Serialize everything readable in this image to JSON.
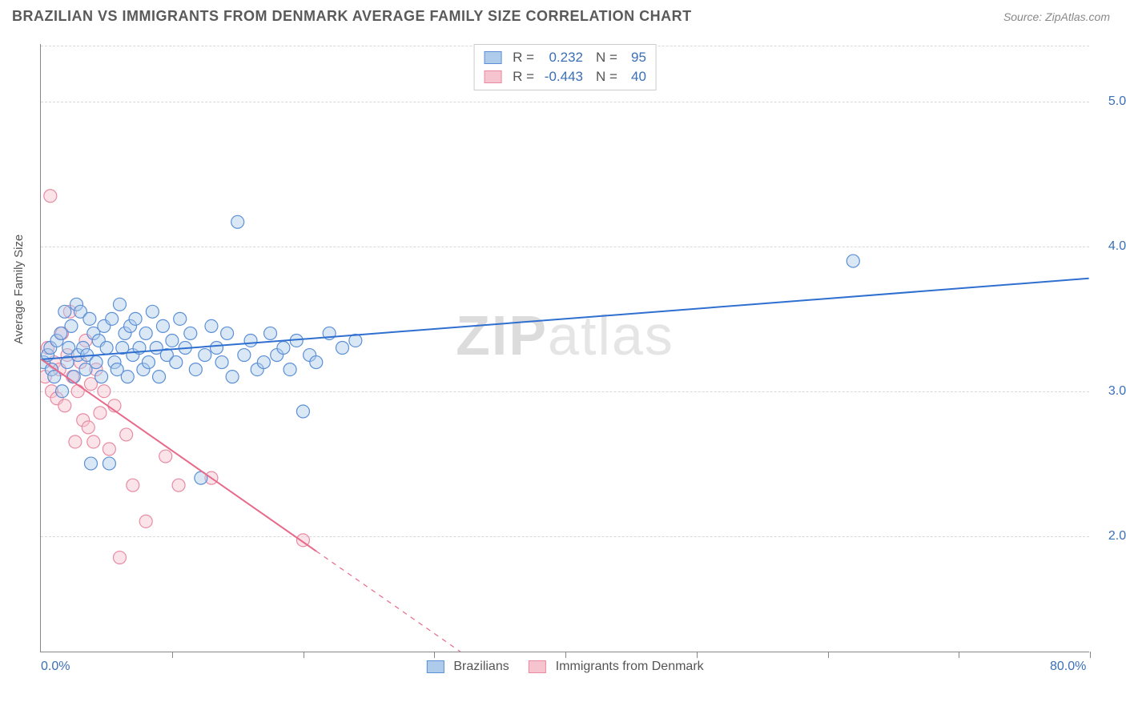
{
  "title": "BRAZILIAN VS IMMIGRANTS FROM DENMARK AVERAGE FAMILY SIZE CORRELATION CHART",
  "source": "Source: ZipAtlas.com",
  "ylabel": "Average Family Size",
  "watermark_part1": "ZIP",
  "watermark_part2": "atlas",
  "chart": {
    "type": "scatter",
    "xlim": [
      0,
      80
    ],
    "ylim": [
      1.2,
      5.4
    ],
    "xtick_labels": {
      "0": "0.0%",
      "80": "80.0%"
    },
    "xtick_positions": [
      0,
      10,
      20,
      30,
      40,
      50,
      60,
      70,
      80
    ],
    "ytick_positions": [
      2.0,
      3.0,
      4.0,
      5.0
    ],
    "ytick_labels": [
      "2.00",
      "3.00",
      "4.00",
      "5.00"
    ],
    "grid_color": "#d8d8d8",
    "background_color": "#ffffff",
    "axis_color": "#888888",
    "marker_radius": 8,
    "marker_opacity": 0.45,
    "line_width": 2,
    "series": [
      {
        "name": "Brazilians",
        "color_fill": "#aecbeb",
        "color_stroke": "#5b8fd6",
        "line_color": "#2f6fd0",
        "R": "0.232",
        "N": "95",
        "trend": {
          "x1": 0,
          "y1": 3.22,
          "x2": 80,
          "y2": 3.78,
          "solid_until_x": 80
        },
        "points": [
          [
            0.2,
            3.2
          ],
          [
            0.5,
            3.25
          ],
          [
            0.7,
            3.3
          ],
          [
            0.8,
            3.15
          ],
          [
            1.0,
            3.1
          ],
          [
            1.2,
            3.35
          ],
          [
            1.5,
            3.4
          ],
          [
            1.6,
            3.0
          ],
          [
            1.8,
            3.55
          ],
          [
            2.0,
            3.2
          ],
          [
            2.1,
            3.3
          ],
          [
            2.3,
            3.45
          ],
          [
            2.5,
            3.1
          ],
          [
            2.7,
            3.6
          ],
          [
            2.8,
            3.25
          ],
          [
            3.0,
            3.55
          ],
          [
            3.2,
            3.3
          ],
          [
            3.4,
            3.15
          ],
          [
            3.5,
            3.25
          ],
          [
            3.7,
            3.5
          ],
          [
            3.8,
            2.5
          ],
          [
            4.0,
            3.4
          ],
          [
            4.2,
            3.2
          ],
          [
            4.4,
            3.35
          ],
          [
            4.6,
            3.1
          ],
          [
            4.8,
            3.45
          ],
          [
            5.0,
            3.3
          ],
          [
            5.2,
            2.5
          ],
          [
            5.4,
            3.5
          ],
          [
            5.6,
            3.2
          ],
          [
            5.8,
            3.15
          ],
          [
            6.0,
            3.6
          ],
          [
            6.2,
            3.3
          ],
          [
            6.4,
            3.4
          ],
          [
            6.6,
            3.1
          ],
          [
            6.8,
            3.45
          ],
          [
            7.0,
            3.25
          ],
          [
            7.2,
            3.5
          ],
          [
            7.5,
            3.3
          ],
          [
            7.8,
            3.15
          ],
          [
            8.0,
            3.4
          ],
          [
            8.2,
            3.2
          ],
          [
            8.5,
            3.55
          ],
          [
            8.8,
            3.3
          ],
          [
            9.0,
            3.1
          ],
          [
            9.3,
            3.45
          ],
          [
            9.6,
            3.25
          ],
          [
            10.0,
            3.35
          ],
          [
            10.3,
            3.2
          ],
          [
            10.6,
            3.5
          ],
          [
            11.0,
            3.3
          ],
          [
            11.4,
            3.4
          ],
          [
            11.8,
            3.15
          ],
          [
            12.2,
            2.4
          ],
          [
            12.5,
            3.25
          ],
          [
            13.0,
            3.45
          ],
          [
            13.4,
            3.3
          ],
          [
            13.8,
            3.2
          ],
          [
            14.2,
            3.4
          ],
          [
            14.6,
            3.1
          ],
          [
            15.0,
            4.17
          ],
          [
            15.5,
            3.25
          ],
          [
            16.0,
            3.35
          ],
          [
            16.5,
            3.15
          ],
          [
            17.0,
            3.2
          ],
          [
            17.5,
            3.4
          ],
          [
            18.0,
            3.25
          ],
          [
            18.5,
            3.3
          ],
          [
            19.0,
            3.15
          ],
          [
            19.5,
            3.35
          ],
          [
            20.0,
            2.86
          ],
          [
            20.5,
            3.25
          ],
          [
            21.0,
            3.2
          ],
          [
            22.0,
            3.4
          ],
          [
            23.0,
            3.3
          ],
          [
            24.0,
            3.35
          ],
          [
            62.0,
            3.9
          ]
        ]
      },
      {
        "name": "Immigrants from Denmark",
        "color_fill": "#f6c4cf",
        "color_stroke": "#e88ba2",
        "line_color": "#e86a8a",
        "R": "-0.443",
        "N": "40",
        "trend": {
          "x1": 0,
          "y1": 3.22,
          "x2": 32,
          "y2": 1.2,
          "solid_until_x": 21
        },
        "points": [
          [
            0.3,
            3.1
          ],
          [
            0.5,
            3.3
          ],
          [
            0.7,
            4.35
          ],
          [
            0.8,
            3.0
          ],
          [
            1.0,
            3.2
          ],
          [
            1.2,
            2.95
          ],
          [
            1.4,
            3.15
          ],
          [
            1.6,
            3.4
          ],
          [
            1.8,
            2.9
          ],
          [
            2.0,
            3.25
          ],
          [
            2.2,
            3.55
          ],
          [
            2.4,
            3.1
          ],
          [
            2.6,
            2.65
          ],
          [
            2.8,
            3.0
          ],
          [
            3.0,
            3.2
          ],
          [
            3.2,
            2.8
          ],
          [
            3.4,
            3.35
          ],
          [
            3.6,
            2.75
          ],
          [
            3.8,
            3.05
          ],
          [
            4.0,
            2.65
          ],
          [
            4.2,
            3.15
          ],
          [
            4.5,
            2.85
          ],
          [
            4.8,
            3.0
          ],
          [
            5.2,
            2.6
          ],
          [
            5.6,
            2.9
          ],
          [
            6.0,
            1.85
          ],
          [
            6.5,
            2.7
          ],
          [
            7.0,
            2.35
          ],
          [
            8.0,
            2.1
          ],
          [
            9.5,
            2.55
          ],
          [
            10.5,
            2.35
          ],
          [
            13.0,
            2.4
          ],
          [
            20.0,
            1.97
          ]
        ]
      }
    ]
  },
  "colors": {
    "title_color": "#5a5a5a",
    "source_color": "#888888",
    "tick_label_color": "#3b6fb6"
  }
}
